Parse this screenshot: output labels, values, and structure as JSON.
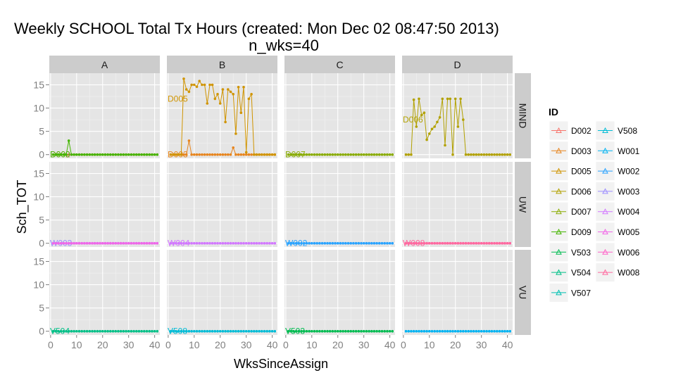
{
  "chart_data": {
    "type": "line",
    "title": "Weekly SCHOOL Total Tx Hours  (created: Mon Dec 02 08:47:50 2013)",
    "subtitle": "n_wks=40",
    "xlabel": "WksSinceAssign",
    "ylabel": "Sch_TOT",
    "xlim": [
      -0.5,
      42
    ],
    "ylim": [
      -0.8,
      17.5
    ],
    "x_ticks": [
      0,
      10,
      20,
      30,
      40
    ],
    "y_ticks": [
      0,
      5,
      10,
      15
    ],
    "grid": true,
    "facet_columns": [
      "A",
      "B",
      "C",
      "D"
    ],
    "facet_rows": [
      "MIND",
      "UW",
      "VU"
    ],
    "legend": {
      "title": "ID",
      "position": "right",
      "entries": [
        {
          "name": "D002",
          "color": "#F8766D"
        },
        {
          "name": "D003",
          "color": "#E7851E"
        },
        {
          "name": "D005",
          "color": "#D09400"
        },
        {
          "name": "D006",
          "color": "#B2A100"
        },
        {
          "name": "D007",
          "color": "#89AC00"
        },
        {
          "name": "D009",
          "color": "#45B500"
        },
        {
          "name": "V503",
          "color": "#00BC51"
        },
        {
          "name": "V504",
          "color": "#00C087"
        },
        {
          "name": "V507",
          "color": "#00C0B2"
        },
        {
          "name": "V508",
          "color": "#00BCD6"
        },
        {
          "name": "W001",
          "color": "#00B3F2"
        },
        {
          "name": "W002",
          "color": "#29A3FF"
        },
        {
          "name": "W003",
          "color": "#9C8DFF"
        },
        {
          "name": "W004",
          "color": "#D277FF"
        },
        {
          "name": "W005",
          "color": "#F166E8"
        },
        {
          "name": "W006",
          "color": "#FF61C7"
        },
        {
          "name": "W008",
          "color": "#FF689E"
        }
      ]
    },
    "panels": [
      {
        "row": "MIND",
        "col": "A",
        "series": [
          {
            "name": "D002",
            "label": "D002",
            "x_start": 1,
            "x_end": 41,
            "values": []
          },
          {
            "name": "D009",
            "label": "D009",
            "x_start": 1,
            "x_end": 41,
            "values": [
              0,
              0,
              0,
              0,
              0,
              0,
              3
            ]
          }
        ]
      },
      {
        "row": "MIND",
        "col": "B",
        "series": [
          {
            "name": "D003",
            "label": "D003",
            "x_start": 1,
            "x_end": 41,
            "values": [
              0,
              0,
              0,
              0,
              0,
              0,
              0,
              3,
              0,
              0,
              0,
              0,
              0,
              0,
              0,
              0,
              0,
              0,
              0,
              0,
              0,
              0,
              0,
              0,
              1.5,
              0,
              0,
              0,
              0
            ]
          },
          {
            "name": "D005",
            "label": "D005",
            "x_start": 1,
            "x_end": 41,
            "values": [
              0,
              0,
              0,
              0,
              0,
              16.3,
              14,
              13.5,
              15,
              15,
              14.6,
              15.8,
              15,
              15,
              11,
              15,
              15,
              12,
              13,
              11,
              14,
              7,
              14,
              13.5,
              13,
              4.5,
              14.5,
              9,
              14.5,
              0.5,
              12,
              13,
              0,
              0
            ]
          }
        ]
      },
      {
        "row": "MIND",
        "col": "C",
        "series": [
          {
            "name": "D007",
            "label": "D007",
            "x_start": 1,
            "x_end": 41,
            "values": []
          }
        ]
      },
      {
        "row": "MIND",
        "col": "D",
        "series": [
          {
            "name": "D006",
            "label": "D006",
            "x_start": 1,
            "x_end": 41,
            "values": [
              0,
              0,
              0,
              11.8,
              6,
              12,
              8.5,
              9,
              3.2,
              4.5,
              5.5,
              6,
              7,
              8,
              12,
              2,
              12,
              12,
              0,
              12,
              6,
              12,
              7.5,
              0,
              0
            ]
          }
        ]
      },
      {
        "row": "UW",
        "col": "A",
        "series": [
          {
            "name": "W003",
            "label": "W003",
            "x_start": 1,
            "x_end": 41,
            "values": []
          },
          {
            "name": "W005",
            "label": "",
            "x_start": 1,
            "x_end": 41,
            "values": []
          }
        ]
      },
      {
        "row": "UW",
        "col": "B",
        "series": [
          {
            "name": "W004",
            "label": "W004",
            "x_start": 1,
            "x_end": 41,
            "values": []
          }
        ]
      },
      {
        "row": "UW",
        "col": "C",
        "series": [
          {
            "name": "W002",
            "label": "W002",
            "x_start": 1,
            "x_end": 41,
            "values": []
          }
        ]
      },
      {
        "row": "UW",
        "col": "D",
        "series": [
          {
            "name": "W006",
            "label": "",
            "x_start": 1,
            "x_end": 41,
            "values": []
          },
          {
            "name": "W008",
            "label": "W008",
            "x_start": 1,
            "x_end": 41,
            "values": []
          }
        ]
      },
      {
        "row": "VU",
        "col": "A",
        "series": [
          {
            "name": "V504",
            "label": "V504",
            "x_start": 1,
            "x_end": 41,
            "values": []
          }
        ]
      },
      {
        "row": "VU",
        "col": "B",
        "series": [
          {
            "name": "V508",
            "label": "V508",
            "x_start": 1,
            "x_end": 41,
            "values": []
          }
        ]
      },
      {
        "row": "VU",
        "col": "C",
        "series": [
          {
            "name": "V503",
            "label": "V503",
            "x_start": 1,
            "x_end": 41,
            "values": []
          }
        ]
      },
      {
        "row": "VU",
        "col": "D",
        "series": [
          {
            "name": "W001",
            "label": "",
            "x_start": 1,
            "x_end": 41,
            "values": []
          }
        ]
      }
    ]
  }
}
